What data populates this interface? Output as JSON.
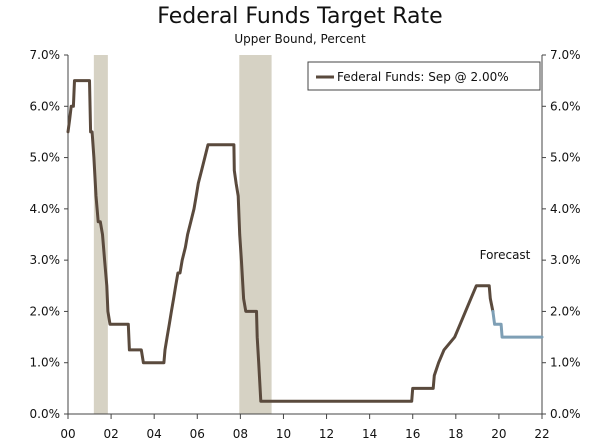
{
  "chart_data": {
    "type": "line",
    "title": "Federal Funds Target Rate",
    "subtitle": "Upper Bound, Percent",
    "xlabel": "",
    "ylabel": "",
    "xlim": [
      2000.0,
      2022.0
    ],
    "ylim": [
      0,
      7
    ],
    "y_ticks": [
      0,
      1,
      2,
      3,
      4,
      5,
      6,
      7
    ],
    "y_tick_labels": [
      "0.0%",
      "1.0%",
      "2.0%",
      "3.0%",
      "4.0%",
      "5.0%",
      "6.0%",
      "7.0%"
    ],
    "x_ticks": [
      2000,
      2002,
      2004,
      2006,
      2008,
      2010,
      2012,
      2014,
      2016,
      2018,
      2020,
      2022
    ],
    "x_tick_labels": [
      "00",
      "02",
      "04",
      "06",
      "08",
      "10",
      "12",
      "14",
      "16",
      "18",
      "20",
      "22"
    ],
    "legend": {
      "position": "top-right",
      "entries": [
        "Federal Funds: Sep @ 2.00%"
      ]
    },
    "annotations": [
      {
        "text": "Forecast"
      }
    ],
    "recessions": [
      [
        2001.2,
        2001.85
      ],
      [
        2007.95,
        2009.45
      ]
    ],
    "series": [
      {
        "name": "Federal Funds: Sep @ 2.00%",
        "color": "#5a4a3d",
        "points": [
          [
            2000.0,
            5.5
          ],
          [
            2000.08,
            5.75
          ],
          [
            2000.15,
            6.0
          ],
          [
            2000.25,
            6.0
          ],
          [
            2000.3,
            6.5
          ],
          [
            2000.9,
            6.5
          ],
          [
            2001.0,
            6.5
          ],
          [
            2001.05,
            5.5
          ],
          [
            2001.12,
            5.5
          ],
          [
            2001.2,
            5.0
          ],
          [
            2001.3,
            4.25
          ],
          [
            2001.4,
            3.75
          ],
          [
            2001.5,
            3.75
          ],
          [
            2001.6,
            3.5
          ],
          [
            2001.7,
            3.0
          ],
          [
            2001.8,
            2.5
          ],
          [
            2001.85,
            2.0
          ],
          [
            2001.95,
            1.75
          ],
          [
            2002.8,
            1.75
          ],
          [
            2002.85,
            1.25
          ],
          [
            2003.4,
            1.25
          ],
          [
            2003.5,
            1.0
          ],
          [
            2004.45,
            1.0
          ],
          [
            2004.5,
            1.25
          ],
          [
            2004.6,
            1.5
          ],
          [
            2004.7,
            1.75
          ],
          [
            2004.8,
            2.0
          ],
          [
            2004.9,
            2.25
          ],
          [
            2005.0,
            2.5
          ],
          [
            2005.1,
            2.75
          ],
          [
            2005.2,
            2.75
          ],
          [
            2005.3,
            3.0
          ],
          [
            2005.45,
            3.25
          ],
          [
            2005.55,
            3.5
          ],
          [
            2005.7,
            3.75
          ],
          [
            2005.85,
            4.0
          ],
          [
            2005.95,
            4.25
          ],
          [
            2006.05,
            4.5
          ],
          [
            2006.2,
            4.75
          ],
          [
            2006.35,
            5.0
          ],
          [
            2006.5,
            5.25
          ],
          [
            2007.7,
            5.25
          ],
          [
            2007.72,
            4.75
          ],
          [
            2007.8,
            4.5
          ],
          [
            2007.9,
            4.25
          ],
          [
            2007.97,
            3.5
          ],
          [
            2008.05,
            3.0
          ],
          [
            2008.15,
            2.25
          ],
          [
            2008.25,
            2.0
          ],
          [
            2008.75,
            2.0
          ],
          [
            2008.78,
            1.5
          ],
          [
            2008.85,
            1.0
          ],
          [
            2008.95,
            0.25
          ],
          [
            2015.95,
            0.25
          ],
          [
            2016.0,
            0.5
          ],
          [
            2016.95,
            0.5
          ],
          [
            2017.0,
            0.75
          ],
          [
            2017.2,
            1.0
          ],
          [
            2017.45,
            1.25
          ],
          [
            2017.95,
            1.5
          ],
          [
            2018.2,
            1.75
          ],
          [
            2018.45,
            2.0
          ],
          [
            2018.7,
            2.25
          ],
          [
            2018.95,
            2.5
          ],
          [
            2019.55,
            2.5
          ],
          [
            2019.6,
            2.25
          ],
          [
            2019.72,
            2.0
          ]
        ]
      },
      {
        "name": "Forecast",
        "color": "#7e9fb5",
        "points": [
          [
            2019.72,
            2.0
          ],
          [
            2019.8,
            1.75
          ],
          [
            2020.1,
            1.75
          ],
          [
            2020.15,
            1.5
          ],
          [
            2022.0,
            1.5
          ]
        ]
      }
    ]
  }
}
